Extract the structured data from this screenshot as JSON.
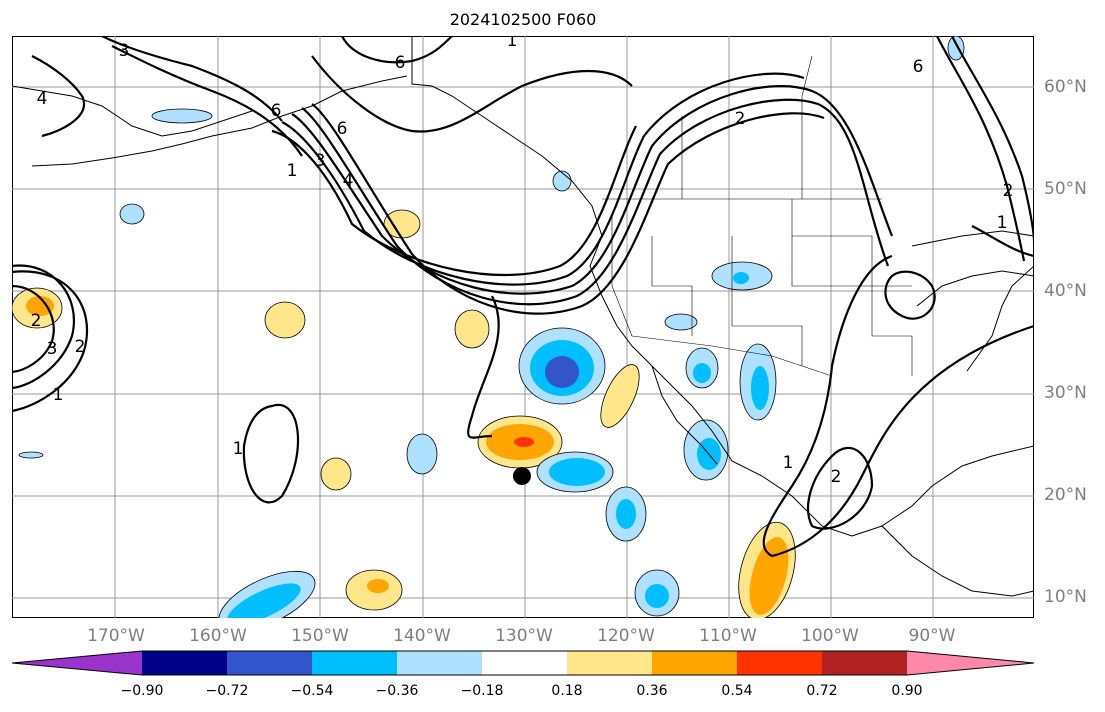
{
  "title": "2024102500 F060",
  "lon_labels": [
    "170°W",
    "160°W",
    "150°W",
    "140°W",
    "130°W",
    "120°W",
    "110°W",
    "100°W",
    "90°W"
  ],
  "lat_labels": [
    "60°N",
    "50°N",
    "40°N",
    "30°N",
    "20°N",
    "10°N"
  ],
  "colorbar": {
    "ticks": [
      "−0.90",
      "−0.72",
      "−0.54",
      "−0.36",
      "−0.18",
      "0.18",
      "0.36",
      "0.54",
      "0.72",
      "0.90"
    ],
    "colors": [
      "#9933cc",
      "#000088",
      "#3355cc",
      "#00bfff",
      "#aee0ff",
      "#ffffff",
      "#ffe68a",
      "#ffa500",
      "#ff3300",
      "#b22222",
      "#ff88aa"
    ]
  },
  "contour_labels": [
    "3",
    "6",
    "6",
    "2",
    "4",
    "1",
    "3",
    "6",
    "4",
    "2",
    "1",
    "3",
    "2",
    "1",
    "1",
    "1",
    "2",
    "1",
    "2",
    "6"
  ],
  "marker": {
    "lat": 22,
    "lon": -130
  }
}
